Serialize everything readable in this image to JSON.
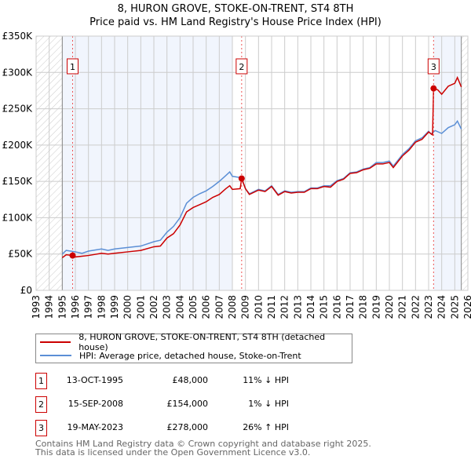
{
  "chart_data": {
    "type": "line",
    "title": "8, HURON GROVE, STOKE-ON-TRENT, ST4 8TH",
    "subtitle": "Price paid vs. HM Land Registry's House Price Index (HPI)",
    "xlabel": "",
    "ylabel": "",
    "xlim": [
      1993,
      2026
    ],
    "ylim": [
      0,
      350000
    ],
    "yticks": [
      {
        "v": 0,
        "label": "£0"
      },
      {
        "v": 50000,
        "label": "£50K"
      },
      {
        "v": 100000,
        "label": "£100K"
      },
      {
        "v": 150000,
        "label": "£150K"
      },
      {
        "v": 200000,
        "label": "£200K"
      },
      {
        "v": 250000,
        "label": "£250K"
      },
      {
        "v": 300000,
        "label": "£300K"
      },
      {
        "v": 350000,
        "label": "£350K"
      }
    ],
    "xticks": [
      "1993",
      "1994",
      "1995",
      "1996",
      "1997",
      "1998",
      "1999",
      "2000",
      "2001",
      "2002",
      "2003",
      "2004",
      "2005",
      "2006",
      "2007",
      "2008",
      "2009",
      "2010",
      "2011",
      "2012",
      "2013",
      "2014",
      "2015",
      "2016",
      "2017",
      "2018",
      "2019",
      "2020",
      "2021",
      "2022",
      "2023",
      "2024",
      "2025",
      "2026"
    ],
    "grid": true,
    "legend_position": "bottom",
    "no_data_ranges": [
      [
        1993,
        1995
      ],
      [
        2025.5,
        2026
      ]
    ],
    "shaded_ranges": [
      [
        1995,
        2008
      ],
      [
        2023.38,
        2025.5
      ]
    ],
    "series": [
      {
        "name": "8, HURON GROVE, STOKE-ON-TRENT, ST4 8TH (detached house)",
        "color": "#cc0000",
        "x": [
          1995.0,
          1995.3,
          1995.8,
          1996.0,
          1996.5,
          1997,
          1998,
          1998.5,
          1999,
          2000,
          2001,
          2002,
          2002.5,
          2003,
          2003.5,
          2004,
          2004.5,
          2005,
          2005.5,
          2006,
          2006.5,
          2007,
          2007.5,
          2007.8,
          2008,
          2008.6,
          2008.71,
          2009,
          2009.3,
          2010,
          2010.5,
          2011,
          2011.5,
          2012,
          2012.5,
          2013,
          2013.5,
          2014,
          2014.5,
          2015,
          2015.5,
          2016,
          2016.5,
          2017,
          2017.5,
          2018,
          2018.5,
          2019,
          2019.5,
          2020,
          2020.3,
          2021,
          2021.5,
          2022,
          2022.5,
          2023,
          2023.3,
          2023.38,
          2023.7,
          2024,
          2024.5,
          2025,
          2025.2,
          2025.5
        ],
        "y": [
          45000,
          49000,
          48000,
          46000,
          47000,
          48000,
          51000,
          50000,
          51000,
          53000,
          55000,
          60000,
          61000,
          72000,
          78000,
          90000,
          108000,
          114000,
          118000,
          122000,
          128000,
          132000,
          140000,
          144000,
          139000,
          140000,
          154000,
          140000,
          132000,
          138000,
          136000,
          143000,
          131000,
          136000,
          134000,
          135000,
          135000,
          140000,
          140000,
          143000,
          142000,
          150000,
          153000,
          161000,
          162000,
          166000,
          168000,
          174000,
          174000,
          176000,
          169000,
          185000,
          193000,
          204000,
          208000,
          218000,
          214000,
          278000,
          276000,
          270000,
          281000,
          285000,
          293000,
          280000
        ]
      },
      {
        "name": "HPI: Average price, detached house, Stoke-on-Trent",
        "color": "#5b8fd6",
        "x": [
          1995.0,
          1995.3,
          1996,
          1996.5,
          1997,
          1998,
          1998.5,
          1999,
          2000,
          2001,
          2002,
          2002.5,
          2003,
          2003.5,
          2004,
          2004.5,
          2005,
          2005.5,
          2006,
          2006.5,
          2007,
          2007.5,
          2007.8,
          2008,
          2008.7,
          2009,
          2009.3,
          2010,
          2010.5,
          2011,
          2011.5,
          2012,
          2012.5,
          2013,
          2013.5,
          2014,
          2014.5,
          2015,
          2015.5,
          2016,
          2016.5,
          2017,
          2017.5,
          2018,
          2018.5,
          2019,
          2019.5,
          2020,
          2020.3,
          2021,
          2021.5,
          2022,
          2022.5,
          2023,
          2023.2,
          2023.5,
          2024,
          2024.5,
          2025,
          2025.2,
          2025.5
        ],
        "y": [
          50000,
          55000,
          53000,
          51000,
          54000,
          57000,
          55000,
          57000,
          59000,
          61000,
          67000,
          69000,
          80000,
          88000,
          100000,
          120000,
          128000,
          133000,
          137000,
          143000,
          150000,
          158000,
          163000,
          157000,
          155000,
          140000,
          133000,
          139000,
          137000,
          144000,
          132000,
          137000,
          135000,
          136000,
          136000,
          141000,
          141000,
          144000,
          144000,
          151000,
          154000,
          162000,
          163000,
          167000,
          169000,
          176000,
          176000,
          178000,
          171000,
          187000,
          195000,
          206000,
          210000,
          219000,
          215000,
          220000,
          216000,
          224000,
          228000,
          233000,
          222000
        ]
      }
    ],
    "sales": [
      {
        "label": "1",
        "x": 1995.79,
        "y": 48000,
        "date": "13-OCT-1995",
        "price": "£48,000",
        "hpi": "11% ↓ HPI"
      },
      {
        "label": "2",
        "x": 2008.71,
        "y": 154000,
        "date": "15-SEP-2008",
        "price": "£154,000",
        "hpi": "1% ↓ HPI"
      },
      {
        "label": "3",
        "x": 2023.38,
        "y": 278000,
        "date": "19-MAY-2023",
        "price": "£278,000",
        "hpi": "26% ↑ HPI"
      }
    ]
  },
  "footer": {
    "line1": "Contains HM Land Registry data © Crown copyright and database right 2025.",
    "line2": "This data is licensed under the Open Government Licence v3.0."
  }
}
